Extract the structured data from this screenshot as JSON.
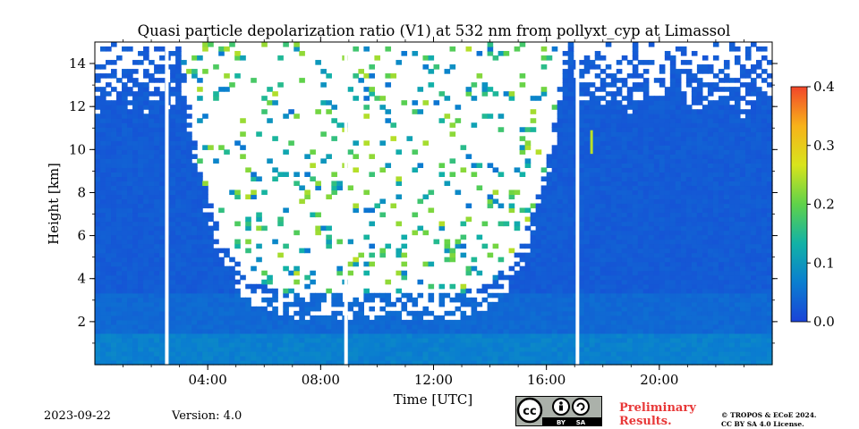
{
  "title": "Quasi particle depolarization ratio (V1) at 532 nm from pollyxt_cyp at Limassol",
  "footer": {
    "date": "2023-09-22",
    "version": "Version: 4.0",
    "preliminary_line1": "Preliminary",
    "preliminary_line2": "Results.",
    "copyright_line1": "© TROPOS & ECoE 2024.",
    "copyright_line2": "CC BY SA 4.0 License.",
    "license_badge": {
      "main": "cc",
      "by": "BY",
      "sa": "SA"
    }
  },
  "chart_data": {
    "type": "heatmap",
    "title": "Quasi particle depolarization ratio (V1) at 532 nm from pollyxt_cyp at Limassol",
    "xlabel": "Time [UTC]",
    "ylabel": "Height [km]",
    "x_range_hours": [
      0,
      24
    ],
    "xlim": [
      "00:00",
      "24:00"
    ],
    "ylim": [
      0,
      15
    ],
    "x_ticks": [
      {
        "hour": 4,
        "label": "04:00"
      },
      {
        "hour": 8,
        "label": "08:00"
      },
      {
        "hour": 12,
        "label": "12:00"
      },
      {
        "hour": 16,
        "label": "16:00"
      },
      {
        "hour": 20,
        "label": "20:00"
      }
    ],
    "y_ticks": [
      {
        "value": 2,
        "label": "2"
      },
      {
        "value": 4,
        "label": "4"
      },
      {
        "value": 6,
        "label": "6"
      },
      {
        "value": 8,
        "label": "8"
      },
      {
        "value": 10,
        "label": "10"
      },
      {
        "value": 12,
        "label": "12"
      },
      {
        "value": 14,
        "label": "14"
      }
    ],
    "colorbar": {
      "min": 0.0,
      "max": 0.4,
      "ticks": [
        {
          "value": 0.0,
          "label": "0.0"
        },
        {
          "value": 0.1,
          "label": "0.1"
        },
        {
          "value": 0.2,
          "label": "0.2"
        },
        {
          "value": 0.3,
          "label": "0.3"
        },
        {
          "value": 0.4,
          "label": "0.4"
        }
      ],
      "colors": [
        "#1a43d8",
        "#0a7ed0",
        "#12b2a6",
        "#5fd24a",
        "#d8e41c",
        "#f7b21a",
        "#f2462a"
      ]
    },
    "grid": false,
    "data_gaps_hours": [
      2.55,
      8.9,
      17.1
    ],
    "features": {
      "background_value": 0.02,
      "low_layer_value": 0.06,
      "low_layer_top_km": 1.5,
      "cloud_free_no_data_region": {
        "start_hour": 2.8,
        "end_hour": 16.9,
        "min_bottom_km": 3.3
      },
      "isolated_high_values": [
        {
          "hour": 17.6,
          "height_km_from": 9.8,
          "height_km_to": 10.9,
          "value": 0.25
        }
      ]
    }
  }
}
